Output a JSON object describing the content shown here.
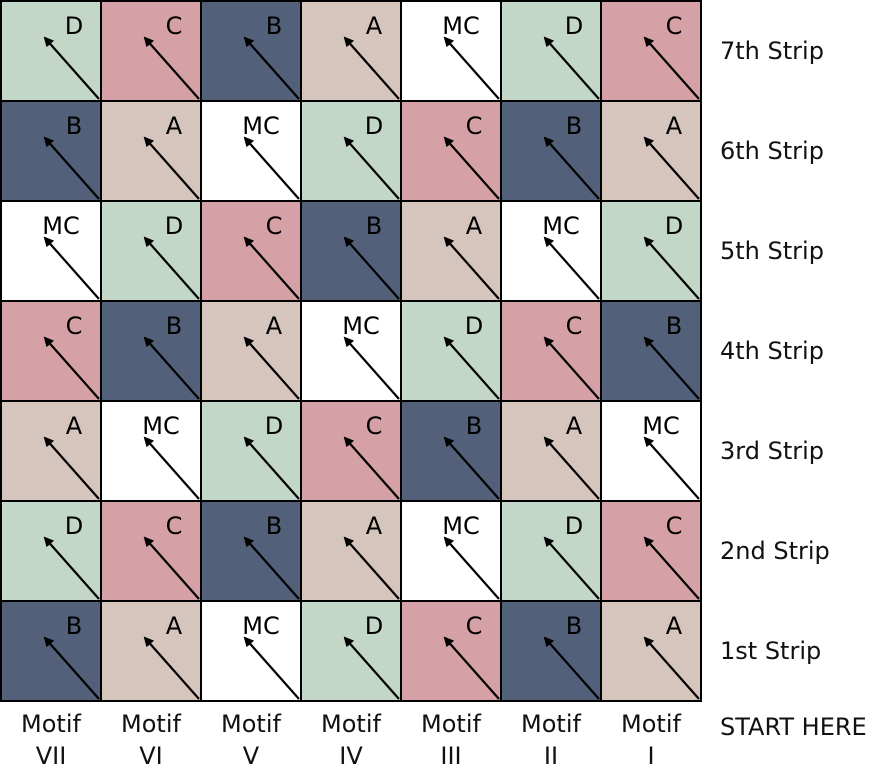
{
  "colors": {
    "A": "#d6c5bd",
    "B": "#52607a",
    "C": "#d6a0a7",
    "D": "#c3d7c9",
    "MC": "#ffffff"
  },
  "grid": {
    "rows": [
      [
        "D",
        "C",
        "B",
        "A",
        "MC",
        "D",
        "C"
      ],
      [
        "B",
        "A",
        "MC",
        "D",
        "C",
        "B",
        "A"
      ],
      [
        "MC",
        "D",
        "C",
        "B",
        "A",
        "MC",
        "D"
      ],
      [
        "C",
        "B",
        "A",
        "MC",
        "D",
        "C",
        "B"
      ],
      [
        "A",
        "MC",
        "D",
        "C",
        "B",
        "A",
        "MC"
      ],
      [
        "D",
        "C",
        "B",
        "A",
        "MC",
        "D",
        "C"
      ],
      [
        "B",
        "A",
        "MC",
        "D",
        "C",
        "B",
        "A"
      ]
    ]
  },
  "strips": [
    "7th Strip",
    "6th Strip",
    "5th Strip",
    "4th Strip",
    "3rd Strip",
    "2nd Strip",
    "1st Strip"
  ],
  "motifs": [
    {
      "word": "Motif",
      "numeral": "VII"
    },
    {
      "word": "Motif",
      "numeral": "VI"
    },
    {
      "word": "Motif",
      "numeral": "V"
    },
    {
      "word": "Motif",
      "numeral": "IV"
    },
    {
      "word": "Motif",
      "numeral": "III"
    },
    {
      "word": "Motif",
      "numeral": "II"
    },
    {
      "word": "Motif",
      "numeral": "I"
    }
  ],
  "start_label": "START HERE",
  "arrow_icon": "diagonal-arrow-icon"
}
